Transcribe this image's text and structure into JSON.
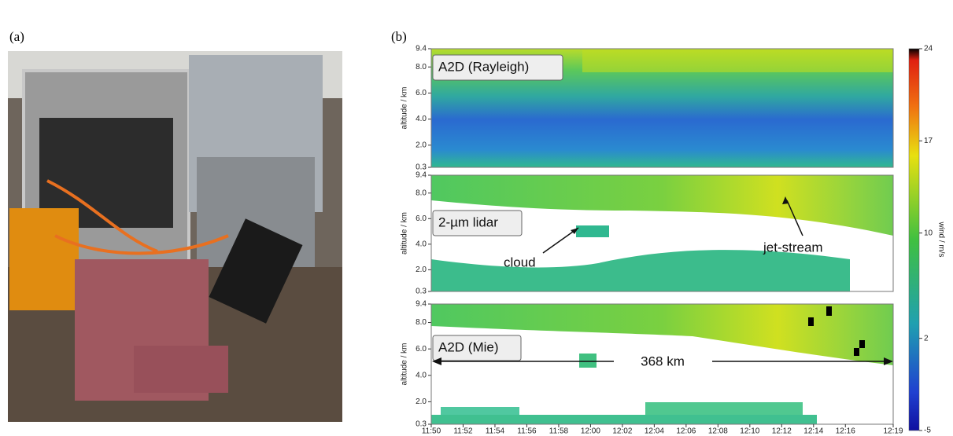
{
  "figure": {
    "panel_a": {
      "label": "(a)"
    },
    "panel_b": {
      "label": "(b)",
      "plots": [
        {
          "title": "A2D (Rayleigh)",
          "ylabel": "altitude / km",
          "yticks": [
            "9.4",
            "8.0",
            "6.0",
            "4.0",
            "2.0",
            "0.3"
          ]
        },
        {
          "title": "2-µm lidar",
          "ylabel": "altitude / km",
          "yticks": [
            "9.4",
            "8.0",
            "6.0",
            "4.0",
            "2.0",
            "0.3"
          ]
        },
        {
          "title": "A2D (Mie)",
          "ylabel": "altitude / km",
          "yticks": [
            "9.4",
            "8.0",
            "6.0",
            "4.0",
            "2.0",
            "0.3"
          ]
        }
      ],
      "annotations": {
        "cloud": "cloud",
        "jet_stream": "jet-stream",
        "distance": "368 km"
      },
      "xticks": [
        "11:50",
        "11:52",
        "11:54",
        "11:56",
        "11:58",
        "12:00",
        "12:02",
        "12:04",
        "12:06",
        "12:08",
        "12:10",
        "12:12",
        "12:14",
        "12:16",
        "12:19"
      ],
      "colorbar": {
        "label": "wind / m/s",
        "ticks": [
          "24",
          "17",
          "10",
          "2",
          "-5"
        ]
      }
    }
  }
}
